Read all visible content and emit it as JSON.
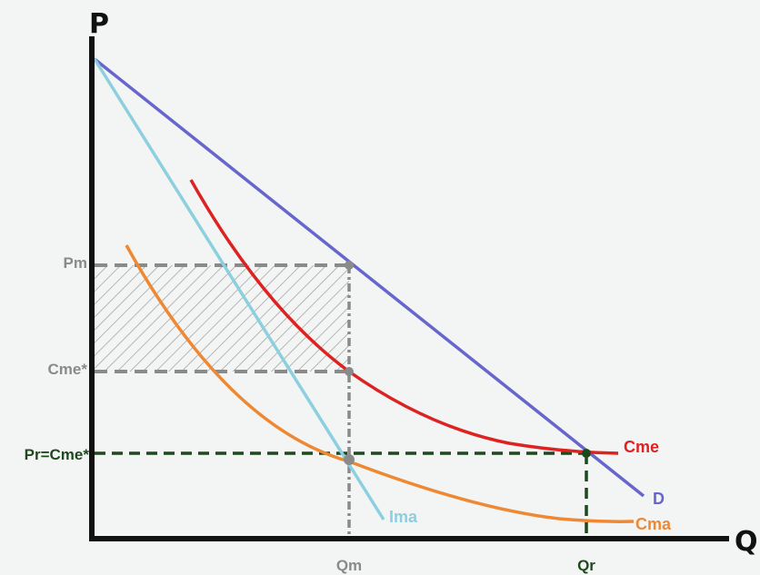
{
  "axes": {
    "y_label": "P",
    "x_label": "Q"
  },
  "tick_labels": {
    "pm": "Pm",
    "cme_star": "Cme*",
    "pr_cme_star": "Pr=Cme*",
    "qm": "Qm",
    "qr": "Qr"
  },
  "curve_labels": {
    "demand": "D",
    "average_cost": "Cme",
    "marginal_cost": "Cma",
    "marginal_revenue": "Ima"
  },
  "colors": {
    "demand": "#6666cc",
    "average_cost": "#dd2222",
    "marginal_cost": "#ee8833",
    "marginal_revenue": "#8ccfdf",
    "guide_gray": "#8a8a8a",
    "guide_green": "#1c4a1c",
    "axis": "#111111",
    "hatch": "#9a9a9a"
  },
  "shaded_area": "profit rectangle between Pm and Cme* from 0 to Qm"
}
